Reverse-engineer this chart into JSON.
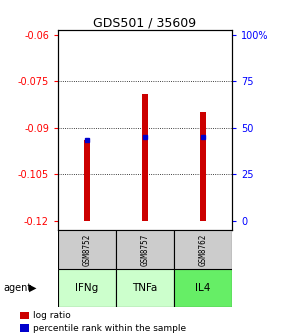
{
  "title": "GDS501 / 35609",
  "samples": [
    "GSM8752",
    "GSM8757",
    "GSM8762"
  ],
  "agents": [
    "IFNg",
    "TNFa",
    "IL4"
  ],
  "bar_bottoms": [
    -0.12,
    -0.12,
    -0.12
  ],
  "bar_tops": [
    -0.094,
    -0.079,
    -0.085
  ],
  "blue_markers": [
    -0.094,
    -0.093,
    -0.093
  ],
  "ylim_min": -0.123,
  "ylim_max": -0.0585,
  "yticks_left": [
    -0.12,
    -0.105,
    -0.09,
    -0.075,
    -0.06
  ],
  "yticks_right_labels": [
    "0",
    "25",
    "50",
    "75",
    "100%"
  ],
  "yticks_right_vals": [
    -0.12,
    -0.105,
    -0.09,
    -0.075,
    -0.06
  ],
  "bar_color": "#cc0000",
  "blue_color": "#0000cc",
  "sample_bg": "#cccccc",
  "agent_bg_light": "#ccffcc",
  "agent_bg_bright": "#66ee66",
  "bar_width": 0.12
}
